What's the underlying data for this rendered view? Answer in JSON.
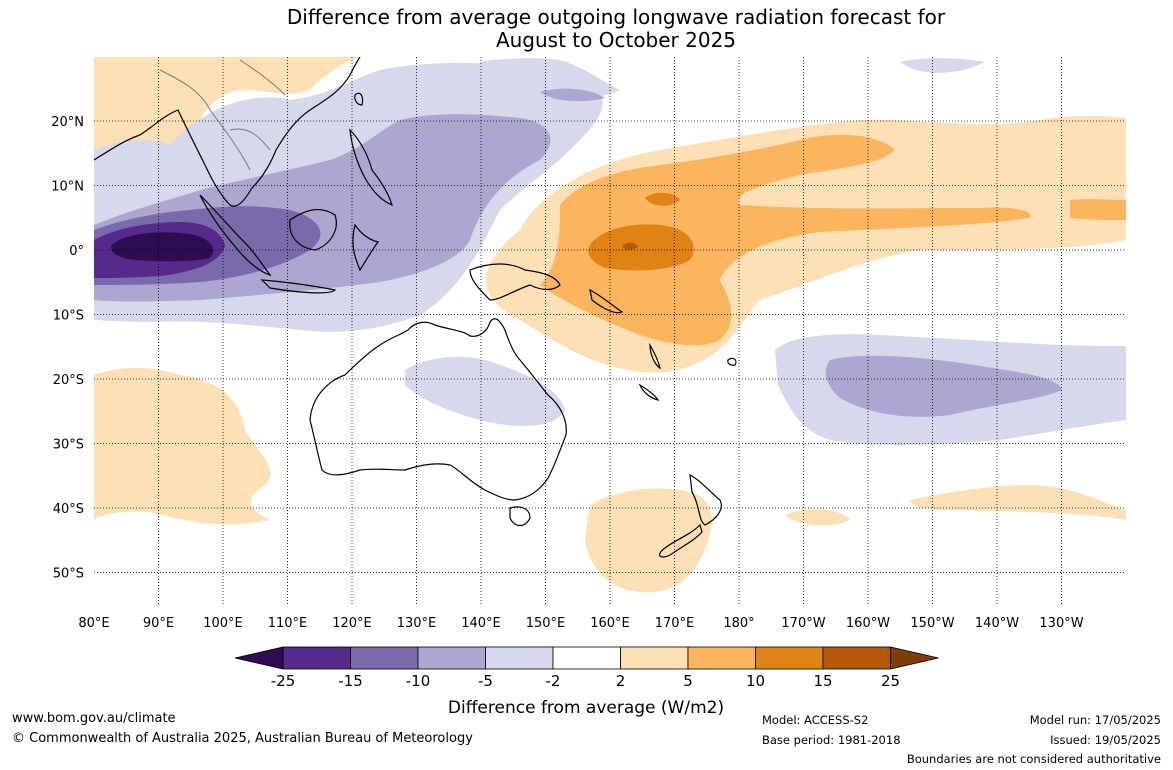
{
  "title_line1": "Difference from average outgoing longwave radiation forecast for",
  "title_line2": "August to October 2025",
  "map": {
    "lon_labels": [
      "80°E",
      "90°E",
      "100°E",
      "110°E",
      "120°E",
      "130°E",
      "140°E",
      "150°E",
      "160°E",
      "170°E",
      "180°",
      "170°W",
      "160°W",
      "150°W",
      "140°W",
      "130°W"
    ],
    "lat_labels": [
      "20°N",
      "10°N",
      "0°",
      "10°S",
      "20°S",
      "30°S",
      "40°S",
      "50°S"
    ]
  },
  "colorbar": {
    "title": "Difference from average (W/m2)",
    "ticks": [
      "-25",
      "-15",
      "-10",
      "-5",
      "-2",
      "2",
      "5",
      "10",
      "15",
      "25"
    ],
    "colors": [
      "#2e0c52",
      "#552a8a",
      "#7b6aab",
      "#aca6d1",
      "#d8d8ec",
      "#ffffff",
      "#fee0b6",
      "#fcb55e",
      "#e08214",
      "#b35806",
      "#7f3b08"
    ]
  },
  "footer": {
    "site": "www.bom.gov.au/climate",
    "copyright": "© Commonwealth of Australia 2025, Australian Bureau of Meteorology",
    "model": "Model: ACCESS-S2",
    "base_period": "Base period: 1981-2018",
    "model_run": "Model run: 17/05/2025",
    "issued": "Issued: 19/05/2025",
    "disclaimer": "Boundaries are not considered authoritative"
  }
}
